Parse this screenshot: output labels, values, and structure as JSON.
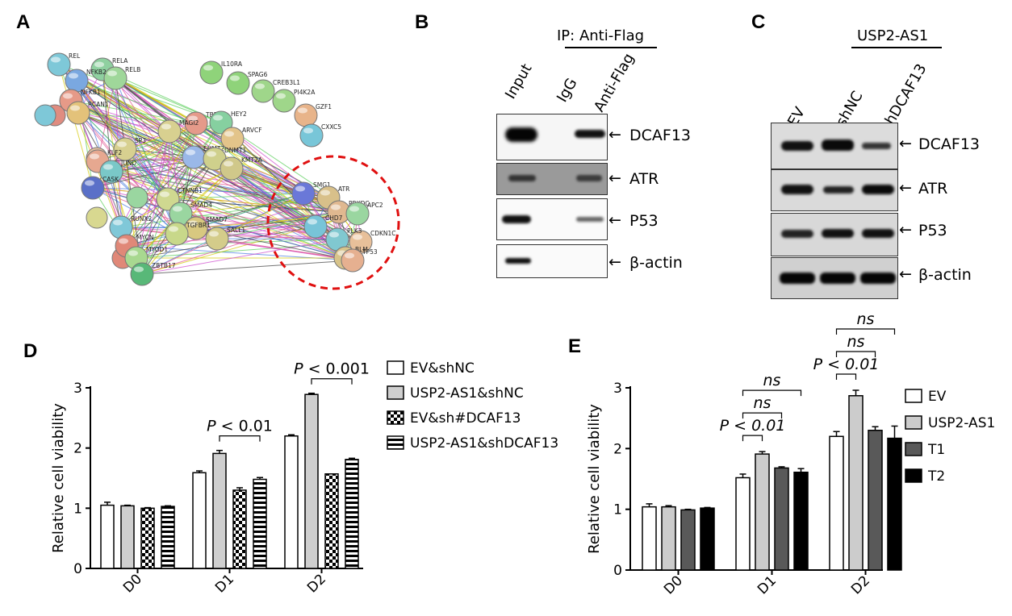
{
  "panels": {
    "A": {
      "label": "A",
      "nodes": [
        {
          "name": "REL",
          "color": "#7ec8d8"
        },
        {
          "name": "RELA",
          "color": "#8fd0a0"
        },
        {
          "name": "RELB",
          "color": "#9fd79a"
        },
        {
          "name": "NFKB2",
          "color": "#7aa8e0"
        },
        {
          "name": "NFKB1",
          "color": "#e69a88"
        },
        {
          "name": "RCAN1",
          "color": "#e3c27a"
        },
        {
          "name": "IL10RA",
          "color": "#8fd37a"
        },
        {
          "name": "SPAG6",
          "color": "#8fd37a"
        },
        {
          "name": "CREB3L1",
          "color": "#9fd68a"
        },
        {
          "name": "PI4K2A",
          "color": "#9fd68a"
        },
        {
          "name": "GZF1",
          "color": "#e8b48a"
        },
        {
          "name": "CXXC5",
          "color": "#78c6d8"
        },
        {
          "name": "TBP",
          "color": "#e59a8a"
        },
        {
          "name": "HEY2",
          "color": "#86d0a0"
        },
        {
          "name": "MAGI2",
          "color": "#d8d090"
        },
        {
          "name": "ARVCF",
          "color": "#e3c48a"
        },
        {
          "name": "SP3",
          "color": "#d7d090"
        },
        {
          "name": "EHMT2",
          "color": "#9ab8e8"
        },
        {
          "name": "DNMT1",
          "color": "#cfd08c"
        },
        {
          "name": "KMT2A",
          "color": "#d0c88a"
        },
        {
          "name": "KLF2",
          "color": "#e6a890"
        },
        {
          "name": "JUND",
          "color": "#7ac8c8"
        },
        {
          "name": "CASK",
          "color": "#5a70c8"
        },
        {
          "name": "CTNNB1",
          "color": "#cfd890"
        },
        {
          "name": "SMAD4",
          "color": "#9ad6a0"
        },
        {
          "name": "SMAD7",
          "color": "#d8c880"
        },
        {
          "name": "TGFBR1",
          "color": "#c8d88a"
        },
        {
          "name": "SALL1",
          "color": "#d4cc8a"
        },
        {
          "name": "RUNX2",
          "color": "#80c8d8"
        },
        {
          "name": "MYCN",
          "color": "#e08878"
        },
        {
          "name": "MYOD1",
          "color": "#a8d890"
        },
        {
          "name": "ZBTB17",
          "color": "#58b878"
        },
        {
          "name": "SMG1",
          "color": "#6a78d8"
        },
        {
          "name": "ATR",
          "color": "#d8c08a"
        },
        {
          "name": "PRKDC",
          "color": "#e0b890"
        },
        {
          "name": "APC2",
          "color": "#9ad6a0"
        },
        {
          "name": "CDKN1C",
          "color": "#e8c09a"
        },
        {
          "name": "CHD7",
          "color": "#78c4d8"
        },
        {
          "name": "PLK3",
          "color": "#80c8d0"
        },
        {
          "name": "BLM",
          "color": "#d8c48a"
        },
        {
          "name": "TP53",
          "color": "#e6b090"
        }
      ]
    },
    "B": {
      "label": "B",
      "header": "IP: Anti-Flag",
      "lanes": [
        "Input",
        "IgG",
        "Anti-Flag"
      ],
      "blots": [
        "DCAF13",
        "ATR",
        "P53",
        "β-actin"
      ],
      "arrow": "←"
    },
    "C": {
      "label": "C",
      "header": "USP2-AS1",
      "lanes": [
        "EV",
        "shNC",
        "shDCAF13"
      ],
      "blots": [
        "DCAF13",
        "ATR",
        "P53",
        "β-actin"
      ],
      "arrow": "←"
    },
    "D": {
      "label": "D"
    },
    "E": {
      "label": "E"
    }
  },
  "chart_data": [
    {
      "type": "bar",
      "panel": "D",
      "ylabel": "Relative cell viability",
      "xlabel": "",
      "ylim": [
        0,
        3
      ],
      "yticks": [
        0,
        1,
        2,
        3
      ],
      "categories": [
        "D0",
        "D1",
        "D2"
      ],
      "series": [
        {
          "name": "EV&shNC",
          "values": [
            1.05,
            1.59,
            2.2
          ],
          "errors": [
            0.05,
            0.03,
            0.02
          ],
          "pattern": "white"
        },
        {
          "name": "USP2-AS1&shNC",
          "values": [
            1.04,
            1.91,
            2.89
          ],
          "errors": [
            0.01,
            0.05,
            0.02
          ],
          "pattern": "gray"
        },
        {
          "name": "EV&sh#DCAF13",
          "values": [
            1.0,
            1.3,
            1.57
          ],
          "errors": [
            0.01,
            0.04,
            0.0
          ],
          "pattern": "checker"
        },
        {
          "name": "USP2-AS1&shDCAF13",
          "values": [
            1.03,
            1.48,
            1.81
          ],
          "errors": [
            0.01,
            0.03,
            0.02
          ],
          "pattern": "stripes"
        }
      ],
      "annotations": [
        {
          "category": "D1",
          "from_series": 1,
          "to_series": 3,
          "level": 1,
          "text": "P < 0.01",
          "prefix": "P",
          "suffix": " < 0.01"
        },
        {
          "category": "D2",
          "from_series": 1,
          "to_series": 3,
          "level": 1,
          "text": "P < 0.001",
          "prefix": "P",
          "suffix": " < 0.001"
        }
      ],
      "legend": "right"
    },
    {
      "type": "bar",
      "panel": "E",
      "ylabel": "Relative cell viability",
      "xlabel": "",
      "ylim": [
        0,
        3
      ],
      "yticks": [
        0,
        1,
        2,
        3
      ],
      "categories": [
        "D0",
        "D1",
        "D2"
      ],
      "series": [
        {
          "name": "EV",
          "values": [
            1.04,
            1.52,
            2.2
          ],
          "errors": [
            0.05,
            0.06,
            0.08
          ],
          "color": "#ffffff"
        },
        {
          "name": "USP2-AS1",
          "values": [
            1.04,
            1.91,
            2.87
          ],
          "errors": [
            0.02,
            0.04,
            0.09
          ],
          "color": "#cccccc"
        },
        {
          "name": "T1",
          "values": [
            0.99,
            1.68,
            2.3
          ],
          "errors": [
            0.01,
            0.02,
            0.06
          ],
          "color": "#595959"
        },
        {
          "name": "T2",
          "values": [
            1.02,
            1.61,
            2.17
          ],
          "errors": [
            0.01,
            0.06,
            0.2
          ],
          "color": "#000000"
        }
      ],
      "annotations": [
        {
          "category": "D1",
          "from_series": 0,
          "to_series": 1,
          "level": 1,
          "text": "P < 0.01",
          "italic": true
        },
        {
          "category": "D1",
          "from_series": 0,
          "to_series": 2,
          "level": 2,
          "text": "ns",
          "italic": true
        },
        {
          "category": "D1",
          "from_series": 0,
          "to_series": 3,
          "level": 3,
          "text": "ns",
          "italic": true
        },
        {
          "category": "D2",
          "from_series": 0,
          "to_series": 1,
          "level": 1,
          "text": "P < 0.01",
          "italic": true
        },
        {
          "category": "D2",
          "from_series": 0,
          "to_series": 2,
          "level": 2,
          "text": "ns",
          "italic": true
        },
        {
          "category": "D2",
          "from_series": 0,
          "to_series": 3,
          "level": 3,
          "text": "ns",
          "italic": true
        }
      ],
      "legend": "right"
    }
  ]
}
